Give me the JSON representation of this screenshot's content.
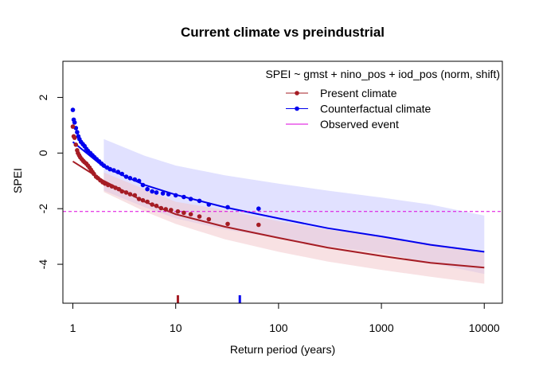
{
  "chart_data": {
    "type": "scatter",
    "title": "Current climate vs preindustrial",
    "subtitle": "SPEI ~ gmst + nino_pos + iod_pos (norm, shift)",
    "xlabel": "Return period (years)",
    "ylabel": "SPEI",
    "x_scale": "log",
    "xlim": [
      0.8,
      15000
    ],
    "ylim": [
      -5.4,
      3.3
    ],
    "x_ticks": [
      1,
      10,
      100,
      1000,
      10000
    ],
    "x_tick_labels": [
      "1",
      "10",
      "100",
      "1000",
      "10000"
    ],
    "y_ticks": [
      -4,
      -2,
      0,
      2
    ],
    "y_tick_labels": [
      "-4",
      "-2",
      "0",
      "2"
    ],
    "grid": false,
    "legend_position": "top-right",
    "observed_event_value": -2.1,
    "colors": {
      "present": "#a51c24",
      "counterfactual": "#0000ee",
      "observed": "#dd00dd",
      "present_band": "#f2c8cc",
      "counterfactual_band": "#c9c9ff"
    },
    "series": [
      {
        "name": "Present climate",
        "points": [
          [
            1.0,
            0.95
          ],
          [
            1.02,
            0.6
          ],
          [
            1.04,
            0.55
          ],
          [
            1.07,
            0.3
          ],
          [
            1.1,
            0.1
          ],
          [
            1.12,
            0.0
          ],
          [
            1.15,
            -0.08
          ],
          [
            1.18,
            -0.15
          ],
          [
            1.22,
            -0.22
          ],
          [
            1.26,
            -0.28
          ],
          [
            1.3,
            -0.33
          ],
          [
            1.35,
            -0.38
          ],
          [
            1.4,
            -0.45
          ],
          [
            1.45,
            -0.52
          ],
          [
            1.5,
            -0.6
          ],
          [
            1.55,
            -0.68
          ],
          [
            1.6,
            -0.75
          ],
          [
            1.68,
            -0.85
          ],
          [
            1.75,
            -0.9
          ],
          [
            1.85,
            -0.98
          ],
          [
            1.95,
            -1.05
          ],
          [
            2.05,
            -1.1
          ],
          [
            2.2,
            -1.15
          ],
          [
            2.4,
            -1.2
          ],
          [
            2.6,
            -1.25
          ],
          [
            2.8,
            -1.3
          ],
          [
            3.0,
            -1.38
          ],
          [
            3.3,
            -1.42
          ],
          [
            3.6,
            -1.48
          ],
          [
            4.0,
            -1.52
          ],
          [
            4.4,
            -1.65
          ],
          [
            4.8,
            -1.7
          ],
          [
            5.3,
            -1.75
          ],
          [
            5.9,
            -1.85
          ],
          [
            6.5,
            -1.9
          ],
          [
            7.2,
            -1.98
          ],
          [
            8.0,
            -2.02
          ],
          [
            9.0,
            -2.05
          ],
          [
            10.5,
            -2.1
          ],
          [
            12.0,
            -2.15
          ],
          [
            14.0,
            -2.2
          ],
          [
            17.0,
            -2.28
          ],
          [
            21.0,
            -2.38
          ],
          [
            32.0,
            -2.55
          ],
          [
            64.0,
            -2.58
          ]
        ],
        "fit": [
          [
            1,
            -0.3
          ],
          [
            2,
            -1.0
          ],
          [
            5,
            -1.75
          ],
          [
            10,
            -2.2
          ],
          [
            30,
            -2.65
          ],
          [
            100,
            -3.05
          ],
          [
            300,
            -3.4
          ],
          [
            1000,
            -3.7
          ],
          [
            3000,
            -3.95
          ],
          [
            10000,
            -4.12
          ]
        ],
        "band_upper": [
          [
            2,
            -0.7
          ],
          [
            5,
            -1.3
          ],
          [
            10,
            -1.75
          ],
          [
            30,
            -2.05
          ],
          [
            100,
            -2.45
          ],
          [
            300,
            -2.75
          ],
          [
            1000,
            -3.0
          ],
          [
            3000,
            -3.25
          ],
          [
            10000,
            -3.55
          ]
        ],
        "band_lower": [
          [
            2,
            -1.4
          ],
          [
            5,
            -2.1
          ],
          [
            10,
            -2.55
          ],
          [
            30,
            -3.1
          ],
          [
            100,
            -3.55
          ],
          [
            300,
            -3.9
          ],
          [
            1000,
            -4.2
          ],
          [
            3000,
            -4.45
          ],
          [
            10000,
            -4.7
          ]
        ],
        "return_period_marker": 10.5
      },
      {
        "name": "Counterfactual climate",
        "points": [
          [
            1.0,
            1.55
          ],
          [
            1.02,
            1.2
          ],
          [
            1.04,
            1.1
          ],
          [
            1.07,
            0.9
          ],
          [
            1.1,
            0.75
          ],
          [
            1.13,
            0.6
          ],
          [
            1.16,
            0.5
          ],
          [
            1.2,
            0.4
          ],
          [
            1.25,
            0.32
          ],
          [
            1.3,
            0.25
          ],
          [
            1.35,
            0.15
          ],
          [
            1.4,
            0.08
          ],
          [
            1.48,
            0.0
          ],
          [
            1.55,
            -0.08
          ],
          [
            1.62,
            -0.15
          ],
          [
            1.7,
            -0.22
          ],
          [
            1.8,
            -0.3
          ],
          [
            1.9,
            -0.38
          ],
          [
            2.0,
            -0.45
          ],
          [
            2.15,
            -0.52
          ],
          [
            2.3,
            -0.58
          ],
          [
            2.5,
            -0.62
          ],
          [
            2.75,
            -0.68
          ],
          [
            3.0,
            -0.75
          ],
          [
            3.3,
            -0.85
          ],
          [
            3.6,
            -0.9
          ],
          [
            4.0,
            -0.95
          ],
          [
            4.4,
            -1.0
          ],
          [
            4.8,
            -1.15
          ],
          [
            5.3,
            -1.3
          ],
          [
            5.9,
            -1.38
          ],
          [
            6.5,
            -1.42
          ],
          [
            7.5,
            -1.45
          ],
          [
            8.5,
            -1.48
          ],
          [
            10.0,
            -1.52
          ],
          [
            12.0,
            -1.58
          ],
          [
            14.0,
            -1.65
          ],
          [
            17.0,
            -1.72
          ],
          [
            21.0,
            -1.85
          ],
          [
            32.0,
            -1.95
          ],
          [
            64.0,
            -2.0
          ]
        ],
        "fit": [
          [
            1,
            0.4
          ],
          [
            2,
            -0.5
          ],
          [
            5,
            -1.15
          ],
          [
            10,
            -1.5
          ],
          [
            30,
            -1.95
          ],
          [
            100,
            -2.35
          ],
          [
            300,
            -2.7
          ],
          [
            1000,
            -3.0
          ],
          [
            3000,
            -3.3
          ],
          [
            10000,
            -3.55
          ]
        ],
        "band_upper": [
          [
            2,
            0.5
          ],
          [
            5,
            -0.1
          ],
          [
            10,
            -0.45
          ],
          [
            30,
            -0.8
          ],
          [
            100,
            -1.1
          ],
          [
            300,
            -1.35
          ],
          [
            1000,
            -1.6
          ],
          [
            3000,
            -1.85
          ],
          [
            10000,
            -2.25
          ]
        ],
        "band_lower": [
          [
            2,
            -1.35
          ],
          [
            5,
            -1.95
          ],
          [
            10,
            -2.35
          ],
          [
            30,
            -2.75
          ],
          [
            100,
            -3.05
          ],
          [
            300,
            -3.35
          ],
          [
            1000,
            -3.6
          ],
          [
            3000,
            -3.95
          ],
          [
            10000,
            -4.35
          ]
        ],
        "return_period_marker": 42
      },
      {
        "name": "Observed event",
        "values": [
          -2.1
        ]
      }
    ]
  }
}
